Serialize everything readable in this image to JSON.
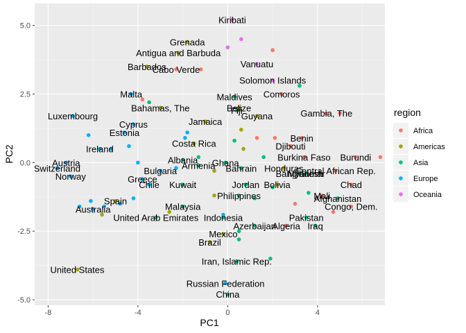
{
  "chart_data": {
    "type": "scatter",
    "xlabel": "PC1",
    "ylabel": "PC2",
    "xlim": [
      -8.6,
      7.0
    ],
    "ylim": [
      -5.2,
      5.8
    ],
    "xticks": [
      -8,
      -4,
      0,
      4
    ],
    "yticks": [
      -5.0,
      -2.5,
      0.0,
      2.5,
      5.0
    ],
    "ytick_labels": [
      "-5.0",
      "-2.5",
      "0.0",
      "2.5",
      "5.0"
    ],
    "grid": true,
    "legend": {
      "title": "region",
      "placement": "right",
      "entries": [
        "Africa",
        "Americas",
        "Asia",
        "Europe",
        "Oceania"
      ]
    },
    "colors": {
      "Africa": "#F8766D",
      "Americas": "#A3A500",
      "Asia": "#00BF7D",
      "Europe": "#00B0F6",
      "Oceania": "#E76BF3"
    },
    "points": [
      {
        "x": 0.2,
        "y": 5.2,
        "region": "Oceania",
        "label": "Kiribati"
      },
      {
        "x": 0.6,
        "y": 4.5,
        "region": "Oceania",
        "label": ""
      },
      {
        "x": 0.0,
        "y": 4.2,
        "region": "Oceania",
        "label": ""
      },
      {
        "x": 1.3,
        "y": 3.6,
        "region": "Oceania",
        "label": "Vanuatu"
      },
      {
        "x": 2.0,
        "y": 3.0,
        "region": "Oceania",
        "label": "Solomon Islands"
      },
      {
        "x": -1.8,
        "y": 4.4,
        "region": "Americas",
        "label": "Grenada"
      },
      {
        "x": -2.2,
        "y": 4.0,
        "region": "Americas",
        "label": "Antigua and Barbuda"
      },
      {
        "x": -3.6,
        "y": 3.5,
        "region": "Americas",
        "label": "Barbados"
      },
      {
        "x": -3.0,
        "y": 2.0,
        "region": "Americas",
        "label": "Bahamas, The"
      },
      {
        "x": -1.0,
        "y": 1.5,
        "region": "Americas",
        "label": "Jamaica"
      },
      {
        "x": 0.5,
        "y": 2.0,
        "region": "Americas",
        "label": "Belize"
      },
      {
        "x": 1.3,
        "y": 1.7,
        "region": "Americas",
        "label": "Guyana"
      },
      {
        "x": 0.7,
        "y": 0.5,
        "region": "Americas",
        "label": ""
      },
      {
        "x": -1.5,
        "y": 0.7,
        "region": "Americas",
        "label": "Costa Rica"
      },
      {
        "x": 0.6,
        "y": 1.2,
        "region": "Americas",
        "label": ""
      },
      {
        "x": 2.5,
        "y": -0.2,
        "region": "Americas",
        "label": "Honduras"
      },
      {
        "x": 2.2,
        "y": -0.8,
        "region": "Americas",
        "label": "Bolivia"
      },
      {
        "x": -0.6,
        "y": -1.2,
        "region": "Americas",
        "label": ""
      },
      {
        "x": -2.6,
        "y": -1.8,
        "region": "Americas",
        "label": ""
      },
      {
        "x": -5.6,
        "y": -1.9,
        "region": "Americas",
        "label": ""
      },
      {
        "x": -0.8,
        "y": -2.9,
        "region": "Americas",
        "label": "Brazil"
      },
      {
        "x": -0.2,
        "y": -2.6,
        "region": "Americas",
        "label": "Mexico"
      },
      {
        "x": -5.0,
        "y": -1.4,
        "region": "Americas",
        "label": "Spain"
      },
      {
        "x": -6.7,
        "y": -3.9,
        "region": "Americas",
        "label": "United States"
      },
      {
        "x": -0.6,
        "y": -0.3,
        "region": "Americas",
        "label": ""
      },
      {
        "x": 2.4,
        "y": 2.5,
        "region": "Africa",
        "label": "Comoros"
      },
      {
        "x": 2.0,
        "y": 4.1,
        "region": "Africa",
        "label": ""
      },
      {
        "x": -2.3,
        "y": 3.4,
        "region": "Africa",
        "label": "Cabo Verde"
      },
      {
        "x": -1.2,
        "y": 3.4,
        "region": "Africa",
        "label": ""
      },
      {
        "x": 4.4,
        "y": 1.8,
        "region": "Africa",
        "label": "Gambia, The"
      },
      {
        "x": 5.0,
        "y": 1.8,
        "region": "Africa",
        "label": ""
      },
      {
        "x": 3.3,
        "y": 0.9,
        "region": "Africa",
        "label": "Benin"
      },
      {
        "x": 2.8,
        "y": 0.6,
        "region": "Africa",
        "label": "Djibouti"
      },
      {
        "x": 3.4,
        "y": 0.2,
        "region": "Africa",
        "label": "Burkina Faso"
      },
      {
        "x": 5.7,
        "y": 0.2,
        "region": "Africa",
        "label": "Burundi"
      },
      {
        "x": 4.8,
        "y": -0.3,
        "region": "Africa",
        "label": "Central African Rep."
      },
      {
        "x": 5.5,
        "y": -0.8,
        "region": "Africa",
        "label": "Chad"
      },
      {
        "x": 4.2,
        "y": -1.2,
        "region": "Africa",
        "label": "Mali"
      },
      {
        "x": 5.5,
        "y": -1.6,
        "region": "Africa",
        "label": "Congo, Dem."
      },
      {
        "x": 2.6,
        "y": -2.3,
        "region": "Africa",
        "label": "Algeria"
      },
      {
        "x": 3.0,
        "y": -1.5,
        "region": "Africa",
        "label": ""
      },
      {
        "x": 1.3,
        "y": 0.9,
        "region": "Africa",
        "label": ""
      },
      {
        "x": 2.1,
        "y": 0.9,
        "region": "Africa",
        "label": ""
      },
      {
        "x": 4.7,
        "y": -1.8,
        "region": "Africa",
        "label": ""
      },
      {
        "x": 6.8,
        "y": 0.2,
        "region": "Africa",
        "label": ""
      },
      {
        "x": -3.8,
        "y": 2.3,
        "region": "Africa",
        "label": ""
      },
      {
        "x": 0.3,
        "y": 2.4,
        "region": "Asia",
        "label": "Maldives"
      },
      {
        "x": 3.2,
        "y": 2.8,
        "region": "Asia",
        "label": ""
      },
      {
        "x": 0.4,
        "y": 1.9,
        "region": "Asia",
        "label": "Fiji"
      },
      {
        "x": -0.1,
        "y": 0.0,
        "region": "Asia",
        "label": "Ghana"
      },
      {
        "x": -2.0,
        "y": 0.1,
        "region": "Asia",
        "label": "Albania"
      },
      {
        "x": -1.3,
        "y": -0.1,
        "region": "Asia",
        "label": "Armenia"
      },
      {
        "x": 0.6,
        "y": -0.2,
        "region": "Asia",
        "label": "Bahrain"
      },
      {
        "x": 0.8,
        "y": -0.8,
        "region": "Asia",
        "label": "Jordan"
      },
      {
        "x": 0.5,
        "y": -1.2,
        "region": "Asia",
        "label": "Philippines"
      },
      {
        "x": -2.0,
        "y": -0.8,
        "region": "Asia",
        "label": "Kuwait"
      },
      {
        "x": 3.2,
        "y": -0.4,
        "region": "Asia",
        "label": "Bangladesh"
      },
      {
        "x": 3.5,
        "y": -0.4,
        "region": "Asia",
        "label": "Myanmar"
      },
      {
        "x": 4.9,
        "y": -1.3,
        "region": "Asia",
        "label": "Afghanistan"
      },
      {
        "x": 3.5,
        "y": -2.0,
        "region": "Asia",
        "label": "Pakistan"
      },
      {
        "x": 3.9,
        "y": -2.3,
        "region": "Asia",
        "label": "Iraq"
      },
      {
        "x": 1.2,
        "y": -2.3,
        "region": "Asia",
        "label": "Azerbaijan"
      },
      {
        "x": -0.2,
        "y": -2.0,
        "region": "Asia",
        "label": "Indonesia"
      },
      {
        "x": -3.2,
        "y": -2.0,
        "region": "Asia",
        "label": "United Arab Emirates"
      },
      {
        "x": -2.0,
        "y": -1.6,
        "region": "Asia",
        "label": "Malaysia"
      },
      {
        "x": 0.4,
        "y": -3.6,
        "region": "Asia",
        "label": "Iran, Islamic Rep."
      },
      {
        "x": 0.5,
        "y": -2.8,
        "region": "Asia",
        "label": ""
      },
      {
        "x": 0.0,
        "y": -4.8,
        "region": "Asia",
        "label": "China"
      },
      {
        "x": 1.6,
        "y": 0.2,
        "region": "Asia",
        "label": ""
      },
      {
        "x": 0.5,
        "y": -2.5,
        "region": "Asia",
        "label": ""
      },
      {
        "x": 3.6,
        "y": -1.1,
        "region": "Asia",
        "label": ""
      },
      {
        "x": 1.9,
        "y": -3.5,
        "region": "Asia",
        "label": ""
      },
      {
        "x": 1.2,
        "y": -1.3,
        "region": "Asia",
        "label": ""
      },
      {
        "x": -1.3,
        "y": 0.2,
        "region": "Asia",
        "label": ""
      },
      {
        "x": -3.5,
        "y": 2.2,
        "region": "Asia",
        "label": ""
      },
      {
        "x": 2.0,
        "y": -0.9,
        "region": "Asia",
        "label": ""
      },
      {
        "x": 0.3,
        "y": 0.8,
        "region": "Asia",
        "label": ""
      },
      {
        "x": -4.3,
        "y": 2.5,
        "region": "Europe",
        "label": "Malta"
      },
      {
        "x": -6.9,
        "y": 1.7,
        "region": "Europe",
        "label": "Luxembourg"
      },
      {
        "x": -4.2,
        "y": 1.4,
        "region": "Europe",
        "label": "Cyprus"
      },
      {
        "x": -4.6,
        "y": 1.1,
        "region": "Europe",
        "label": "Estonia"
      },
      {
        "x": -6.2,
        "y": 1.0,
        "region": "Europe",
        "label": ""
      },
      {
        "x": -5.7,
        "y": 0.5,
        "region": "Europe",
        "label": "Ireland"
      },
      {
        "x": -7.2,
        "y": 0.0,
        "region": "Europe",
        "label": "Austria"
      },
      {
        "x": -7.6,
        "y": -0.2,
        "region": "Europe",
        "label": "Switzerland"
      },
      {
        "x": -7.0,
        "y": -0.5,
        "region": "Europe",
        "label": "Norway"
      },
      {
        "x": -3.8,
        "y": -0.6,
        "region": "Europe",
        "label": "Greece"
      },
      {
        "x": -3.5,
        "y": -0.8,
        "region": "Europe",
        "label": "Chile"
      },
      {
        "x": -3.0,
        "y": -0.3,
        "region": "Europe",
        "label": "Bulgaria"
      },
      {
        "x": -6.0,
        "y": -1.7,
        "region": "Europe",
        "label": "Australia"
      },
      {
        "x": -0.1,
        "y": -4.4,
        "region": "Europe",
        "label": "Russian Federation"
      },
      {
        "x": -4.8,
        "y": -1.5,
        "region": "Europe",
        "label": ""
      },
      {
        "x": -5.5,
        "y": -1.6,
        "region": "Europe",
        "label": ""
      },
      {
        "x": -6.1,
        "y": -1.4,
        "region": "Europe",
        "label": ""
      },
      {
        "x": -6.6,
        "y": -1.6,
        "region": "Europe",
        "label": ""
      },
      {
        "x": -4.2,
        "y": -1.3,
        "region": "Europe",
        "label": ""
      },
      {
        "x": -1.9,
        "y": 0.9,
        "region": "Europe",
        "label": ""
      },
      {
        "x": -1.8,
        "y": 1.1,
        "region": "Europe",
        "label": ""
      },
      {
        "x": -4.4,
        "y": 0.6,
        "region": "Europe",
        "label": ""
      },
      {
        "x": -5.2,
        "y": 0.5,
        "region": "Europe",
        "label": ""
      },
      {
        "x": -4.0,
        "y": 0.0,
        "region": "Europe",
        "label": ""
      },
      {
        "x": -2.3,
        "y": -0.2,
        "region": "Europe",
        "label": ""
      },
      {
        "x": -0.2,
        "y": -1.9,
        "region": "Europe",
        "label": ""
      }
    ]
  }
}
